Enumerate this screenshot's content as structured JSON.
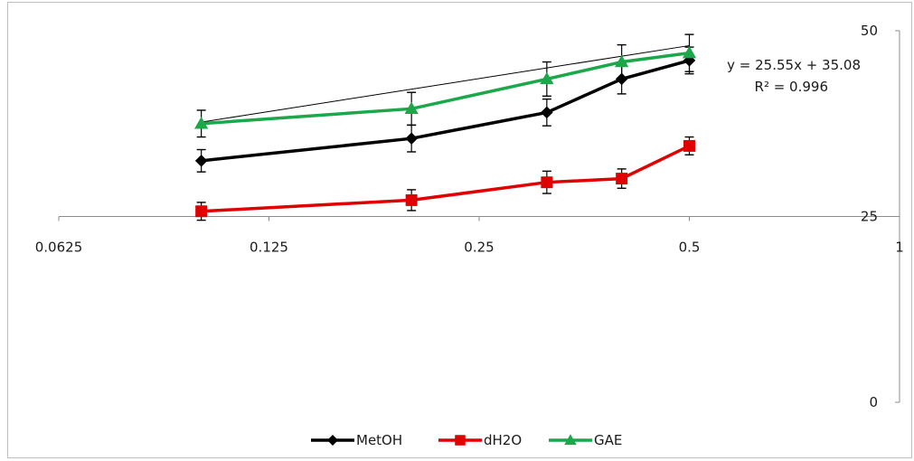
{
  "chart_data": {
    "type": "line",
    "x_scale": "log2",
    "xlim": [
      0.0625,
      1
    ],
    "ylim": [
      0,
      50
    ],
    "x_ticks": [
      0.0625,
      0.125,
      0.25,
      0.5,
      1
    ],
    "x_tick_labels": [
      "0.0625",
      "0.125",
      "0.25",
      "0.5",
      "1"
    ],
    "y_ticks": [
      0,
      25,
      50
    ],
    "y_tick_labels": [
      "0",
      "25",
      "50"
    ],
    "y_axis_side": "right",
    "x_axis_crosses_y": 25,
    "grid": false,
    "legend_position": "bottom",
    "x": [
      0.1,
      0.2,
      0.3125,
      0.4,
      0.5
    ],
    "series": [
      {
        "name": "MetOH",
        "color": "#000000",
        "marker": "diamond",
        "values": [
          32.5,
          35.5,
          39.0,
          43.5,
          46.0
        ],
        "errors": [
          1.5,
          1.8,
          1.8,
          2.0,
          1.8
        ]
      },
      {
        "name": "dH2O",
        "color": "#e00000",
        "marker": "square",
        "values": [
          25.7,
          27.2,
          29.6,
          30.1,
          34.5
        ],
        "errors": [
          1.2,
          1.4,
          1.5,
          1.3,
          1.2
        ]
      },
      {
        "name": "GAE",
        "color": "#1aa84a",
        "marker": "triangle",
        "values": [
          37.5,
          39.5,
          43.5,
          45.8,
          47.0
        ],
        "errors": [
          1.8,
          2.2,
          2.3,
          2.3,
          2.5
        ]
      }
    ],
    "trendline": {
      "color": "#000000",
      "equation": "y = 25.55x + 35.08",
      "r2": "R² = 0.996",
      "x": [
        0.1,
        0.5
      ],
      "values": [
        37.7,
        48.0
      ]
    }
  }
}
